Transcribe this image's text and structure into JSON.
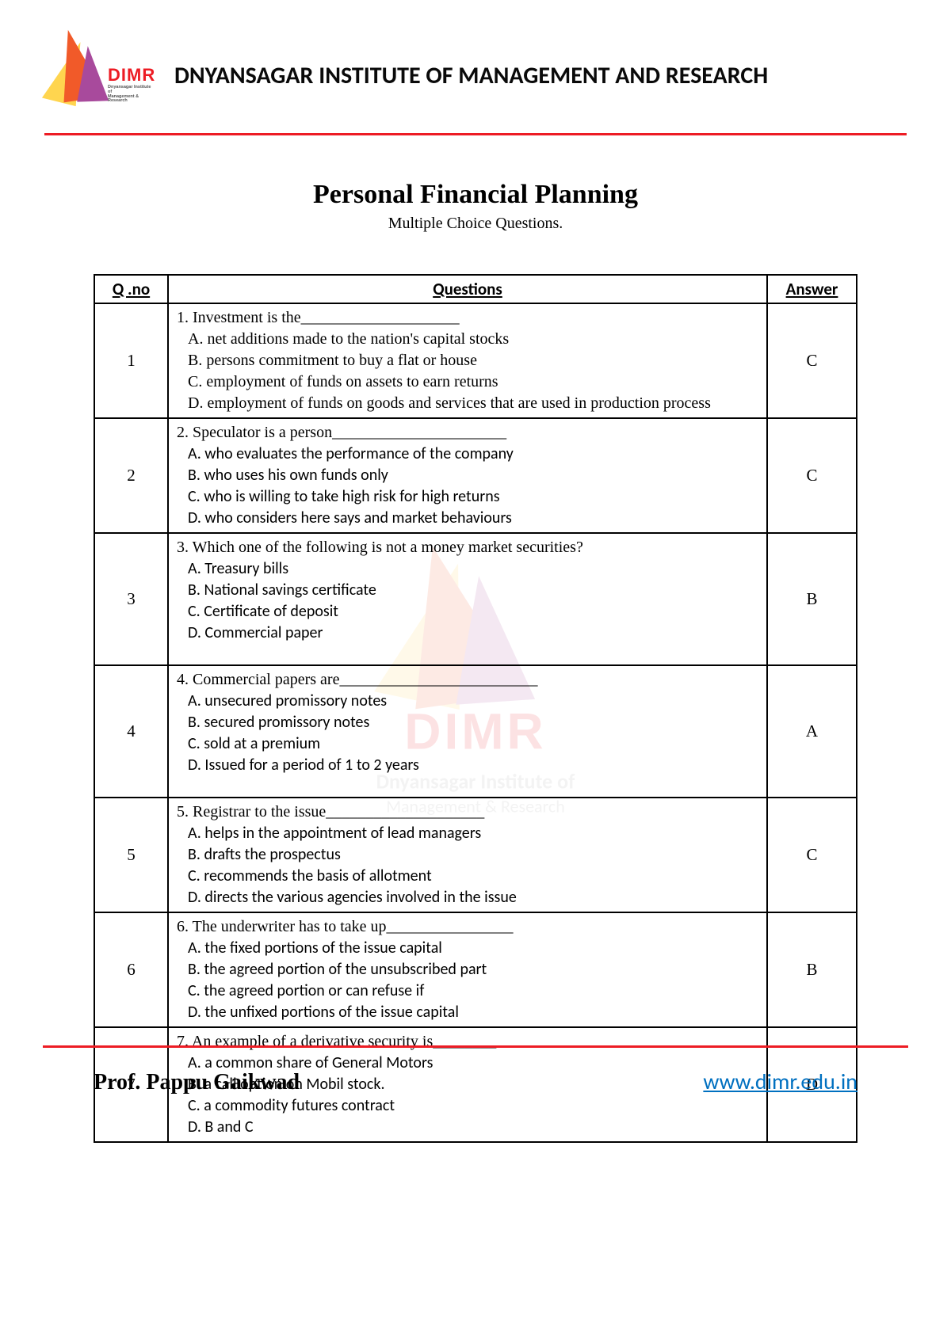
{
  "header": {
    "institute_name": "DNYANSAGAR INSTITUTE OF MANAGEMENT AND RESEARCH",
    "logo_text": "DIMR",
    "logo_sub": "Dnyansagar Institute of\nManagement & Research"
  },
  "title": "Personal Financial Planning",
  "subtitle": "Multiple Choice Questions.",
  "columns": {
    "qno": "Q .no",
    "questions": "Questions",
    "answer": "Answer"
  },
  "colors": {
    "accent_red": "#ed1c24",
    "link_blue": "#0070c0",
    "text": "#000000",
    "background": "#ffffff"
  },
  "watermark": {
    "line1": "DIMR",
    "line2": "Dnyansagar Institute of",
    "line3": "Management & Research"
  },
  "questions": [
    {
      "n": "1",
      "stem": "1. Investment is the____________________",
      "opts": [
        "A. net additions made to the nation's capital stocks",
        "B. persons commitment to buy a flat or house",
        "C. employment of funds on assets to earn returns",
        "D. employment of funds on goods and services that are used in production process"
      ],
      "ans": "C",
      "serif_opts": true
    },
    {
      "n": "2",
      "stem": "2. Speculator is a person______________________",
      "opts": [
        "A. who evaluates the performance of the company",
        "B. who uses his own funds only",
        "C. who is willing to take high risk for high returns",
        "D. who considers here says and market behaviours"
      ],
      "ans": "C"
    },
    {
      "n": "3",
      "stem": "3. Which one of the following is not a money market securities?",
      "opts": [
        "A. Treasury bills",
        "B. National savings certificate",
        "C. Certificate of deposit",
        "D. Commercial paper"
      ],
      "ans": "B",
      "extra_pad": true
    },
    {
      "n": "4",
      "stem": "4. Commercial papers are_________________________",
      "opts": [
        "A. unsecured promissory notes",
        "B. secured promissory notes",
        "C. sold at a premium",
        "D. Issued for a period of 1 to 2 years"
      ],
      "ans": "A",
      "extra_pad": true
    },
    {
      "n": "5",
      "stem": "5. Registrar to the issue____________________",
      "opts": [
        "A. helps in the appointment of lead managers",
        "B. drafts the prospectus",
        "C. recommends the basis of allotment",
        "D. directs the various agencies involved in the issue"
      ],
      "ans": "C"
    },
    {
      "n": "6",
      "stem": "6. The underwriter has to take up________________",
      "opts": [
        "A. the fixed portions of the issue capital",
        "B. the agreed portion of the unsubscribed part",
        "C. the agreed portion or can refuse if",
        "D. the unfixed portions of the issue capital"
      ],
      "ans": "B"
    },
    {
      "n": "7",
      "stem": "7. An example of a derivative security is________",
      "opts": [
        "A. a common share of General Motors",
        "B. a call option on Mobil stock.",
        "C. a commodity futures contract",
        "D. B and C"
      ],
      "ans": "D"
    }
  ],
  "footer": {
    "left": "Prof. Pappu  Gaikwad",
    "right": "www.dimr.edu.in"
  }
}
